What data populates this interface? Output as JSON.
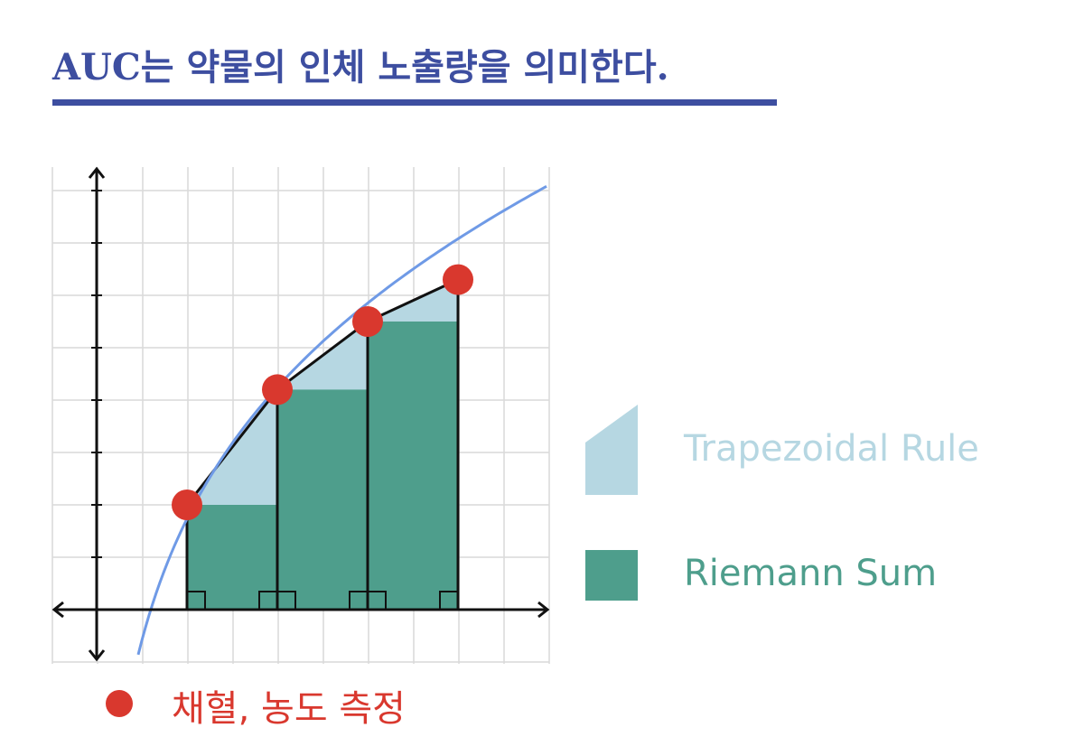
{
  "title": "AUC는 약물의 인체 노출량을 의미한다.",
  "legend": {
    "trapezoidal": {
      "label": "Trapezoidal Rule",
      "color": "#b6d7e2"
    },
    "riemann": {
      "label": "Riemann Sum",
      "color": "#4e9e8c"
    }
  },
  "sample_marker": {
    "label": "채혈, 농도 측정",
    "color": "#d9382e"
  },
  "diagram": {
    "curve_color": "#6f9ae6",
    "grid_color": "#d9d9d9",
    "axis_color": "#111111",
    "samples": [
      {
        "x": 2,
        "y": 2.0
      },
      {
        "x": 4,
        "y": 4.2
      },
      {
        "x": 6,
        "y": 5.5
      },
      {
        "x": 8,
        "y": 6.3
      }
    ]
  }
}
